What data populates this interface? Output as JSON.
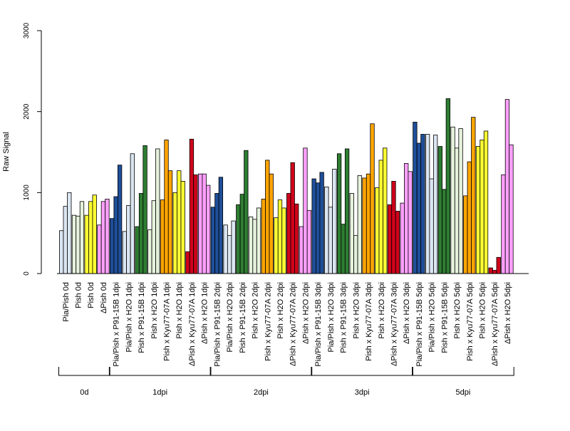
{
  "chart_data": {
    "type": "bar",
    "ylabel": "Raw Signal",
    "ylim": [
      0,
      3000
    ],
    "yticks": [
      0,
      1000,
      2000,
      3000
    ],
    "grid": false,
    "colors": {
      "Pia/Pish": "#dbe6f2",
      "Pish": "#e6f2dc",
      "Pish_0d": "#ffff33",
      "DPish": "#ffa0ff",
      "P91": "#1f4f99",
      "P91_light": "#dbe6f2",
      "H2O_Pish": "#e6f2dc",
      "P91_Pish": "#2e7d32",
      "Kyu_Pish": "#ffa500",
      "H2O_Pish_y": "#ffff33",
      "Kyu_DPish": "#d0021b",
      "H2O_DPish": "#ffa0ff"
    },
    "categories": [
      {
        "label": "Pia/Pish 0d",
        "color": "#dbe6f2",
        "values": [
          530,
          830,
          1000
        ]
      },
      {
        "label": "Pish 0d",
        "color": "#e6f2dc",
        "values": [
          720,
          710,
          890
        ]
      },
      {
        "label": "Pish 0d",
        "color": "#ffff33",
        "values": [
          720,
          890,
          970
        ]
      },
      {
        "label": "ΔPish 0d",
        "color": "#ffa0ff",
        "values": [
          600,
          890,
          920
        ]
      },
      {
        "label": "Pia/Pish x P91-15B 1dpi",
        "color": "#1f4f99",
        "values": [
          680,
          950,
          1340
        ]
      },
      {
        "label": "Pia/Pish x H2O 1dpi",
        "color": "#dbe6f2",
        "values": [
          520,
          840,
          1480
        ]
      },
      {
        "label": "Pish x P91-15B 1dpi",
        "color": "#2e7d32",
        "values": [
          580,
          990,
          1580
        ]
      },
      {
        "label": "Pish x H2O 1dpi",
        "color": "#e6f2dc",
        "values": [
          540,
          900,
          1540
        ]
      },
      {
        "label": "Pish x Kyu77-07A 1dpi",
        "color": "#ffa500",
        "values": [
          910,
          1650,
          1270
        ]
      },
      {
        "label": "Pish x H2O 1dpi",
        "color": "#ffff33",
        "values": [
          1000,
          1270,
          1140
        ]
      },
      {
        "label": "ΔPish x Kyu77-07A 1dpi",
        "color": "#d0021b",
        "values": [
          270,
          1660,
          1220
        ]
      },
      {
        "label": "ΔPish x H2O 1dpi",
        "color": "#ffa0ff",
        "values": [
          1230,
          1230,
          1090
        ]
      },
      {
        "label": "Pia/Pish x P91-15B 2dpi",
        "color": "#1f4f99",
        "values": [
          820,
          990,
          1190
        ]
      },
      {
        "label": "Pia/Pish x H2O 2dpi",
        "color": "#dbe6f2",
        "values": [
          600,
          470,
          650
        ]
      },
      {
        "label": "Pish x P91-15B 2dpi",
        "color": "#2e7d32",
        "values": [
          850,
          980,
          1520
        ]
      },
      {
        "label": "Pish x H2O 2dpi",
        "color": "#e6f2dc",
        "values": [
          700,
          670,
          810
        ]
      },
      {
        "label": "Pish x Kyu77-07A 2dpi",
        "color": "#ffa500",
        "values": [
          920,
          1400,
          1230
        ]
      },
      {
        "label": "Pish x H2O 2dpi",
        "color": "#ffff33",
        "values": [
          690,
          910,
          810
        ]
      },
      {
        "label": "ΔPish x Kyu77-07A 2dpi",
        "color": "#d0021b",
        "values": [
          990,
          1370,
          860
        ]
      },
      {
        "label": "ΔPish x H2O 2dpi",
        "color": "#ffa0ff",
        "values": [
          580,
          1550,
          780
        ]
      },
      {
        "label": "Pia/Pish x P91-15B 3dpi",
        "color": "#1f4f99",
        "values": [
          1170,
          1120,
          1250
        ]
      },
      {
        "label": "Pia/Pish x H2O 3dpi",
        "color": "#dbe6f2",
        "values": [
          1070,
          820,
          1290
        ]
      },
      {
        "label": "Pish x P91-15B 3dpi",
        "color": "#2e7d32",
        "values": [
          1480,
          610,
          1540
        ]
      },
      {
        "label": "Pish x H2O 3dpi",
        "color": "#e6f2dc",
        "values": [
          990,
          470,
          1210
        ]
      },
      {
        "label": "Pish x Kyu77-07A 3dpi",
        "color": "#ffa500",
        "values": [
          1180,
          1230,
          1850
        ]
      },
      {
        "label": "Pish x H2O 3dpi",
        "color": "#ffff33",
        "values": [
          1060,
          1400,
          1550
        ]
      },
      {
        "label": "ΔPish x Kyu77-07A 3dpi",
        "color": "#d0021b",
        "values": [
          850,
          1140,
          770
        ]
      },
      {
        "label": "ΔPish x H2O 3dpi",
        "color": "#ffa0ff",
        "values": [
          870,
          1360,
          1260
        ]
      },
      {
        "label": "Pia/Pish x P91-15B 5dpi",
        "color": "#1f4f99",
        "values": [
          1870,
          1610,
          1720
        ]
      },
      {
        "label": "Pia/Pish x H2O 5dpi",
        "color": "#dbe6f2",
        "values": [
          1720,
          1170,
          1710
        ]
      },
      {
        "label": "Pish x P91-15B 5dpi",
        "color": "#2e7d32",
        "values": [
          1570,
          1040,
          2160
        ]
      },
      {
        "label": "Pish x H2O 5dpi",
        "color": "#e6f2dc",
        "values": [
          1810,
          1550,
          1790
        ]
      },
      {
        "label": "Pish x Kyu77-07A 5dpi",
        "color": "#ffa500",
        "values": [
          960,
          1380,
          1930
        ]
      },
      {
        "label": "Pish x H2O 5dpi",
        "color": "#ffff33",
        "values": [
          1570,
          1650,
          1760
        ]
      },
      {
        "label": "ΔPish x Kyu77-07A 5dpi",
        "color": "#d0021b",
        "values": [
          70,
          40,
          200
        ]
      },
      {
        "label": "ΔPish x H2O 5dpi",
        "color": "#ffa0ff",
        "values": [
          1220,
          2150,
          1590
        ]
      }
    ],
    "groups": [
      {
        "label": "0d",
        "from": 0,
        "to": 3
      },
      {
        "label": "1dpi",
        "from": 4,
        "to": 11
      },
      {
        "label": "2dpi",
        "from": 12,
        "to": 19
      },
      {
        "label": "3dpi",
        "from": 20,
        "to": 27
      },
      {
        "label": "5dpi",
        "from": 28,
        "to": 35
      }
    ]
  }
}
